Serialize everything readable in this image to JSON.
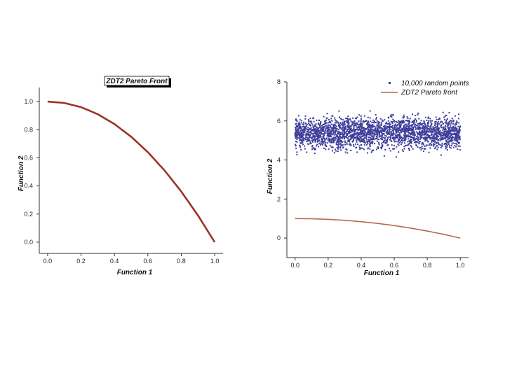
{
  "chart_data": [
    {
      "type": "line",
      "title": "ZDT2 Pareto Front",
      "xlabel": "Function 1",
      "ylabel": "Function 2",
      "xlim": [
        -0.05,
        1.05
      ],
      "ylim": [
        -0.08,
        1.1
      ],
      "x_ticks": [
        "0.0",
        "0.2",
        "0.4",
        "0.6",
        "0.8",
        "1.0"
      ],
      "y_ticks": [
        "0.0",
        "0.2",
        "0.4",
        "0.6",
        "0.8",
        "1.0"
      ],
      "series": [
        {
          "name": "ZDT2 Pareto front",
          "color": "#9b3327",
          "x": [
            0.0,
            0.1,
            0.2,
            0.3,
            0.4,
            0.5,
            0.6,
            0.7,
            0.8,
            0.9,
            1.0
          ],
          "y": [
            1.0,
            0.99,
            0.96,
            0.91,
            0.84,
            0.75,
            0.64,
            0.51,
            0.36,
            0.19,
            0.0
          ]
        }
      ]
    },
    {
      "type": "scatter",
      "xlabel": "Function 1",
      "ylabel": "Function 2",
      "xlim": [
        -0.05,
        1.05
      ],
      "ylim": [
        -1.0,
        8.0
      ],
      "x_ticks": [
        "0.0",
        "0.2",
        "0.4",
        "0.6",
        "0.8",
        "1.0"
      ],
      "y_ticks": [
        "0",
        "2",
        "4",
        "6",
        "8"
      ],
      "legend": "top-right",
      "series": [
        {
          "name": "10,000 random points",
          "type": "scatter",
          "color": "#3f3e9a",
          "x_range": [
            0.0,
            1.0
          ],
          "y_range": [
            3.8,
            7.0
          ],
          "y_center": 5.4,
          "count": 10000
        },
        {
          "name": "ZDT2 Pareto front",
          "type": "line",
          "color": "#b8664a",
          "x": [
            0.0,
            0.1,
            0.2,
            0.3,
            0.4,
            0.5,
            0.6,
            0.7,
            0.8,
            0.9,
            1.0
          ],
          "y": [
            1.0,
            0.99,
            0.96,
            0.91,
            0.84,
            0.75,
            0.64,
            0.51,
            0.36,
            0.19,
            0.0
          ]
        }
      ]
    }
  ]
}
